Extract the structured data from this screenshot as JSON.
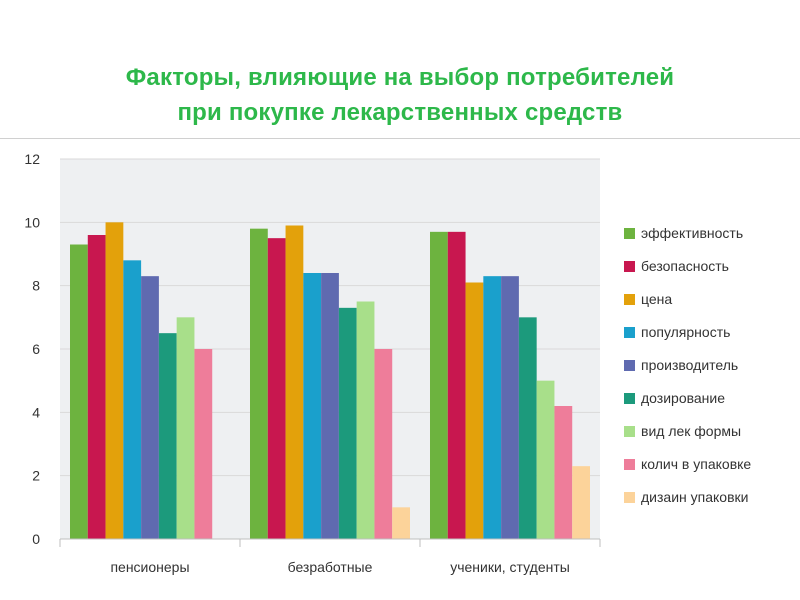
{
  "title": {
    "line1": "Факторы, влияющие на выбор потребителей",
    "line2": "при покупке лекарственных средств"
  },
  "colors": {
    "title": "#2db84a",
    "plot_background": "#eef0f2",
    "gridline": "#d9d9d9"
  },
  "chart_data": {
    "type": "bar",
    "categories": [
      "пенсионеры",
      "безработные",
      "ученики, студенты"
    ],
    "series": [
      {
        "name": "эффективность",
        "color": "#6db33f",
        "values": [
          9.3,
          9.8,
          9.7
        ]
      },
      {
        "name": "безопасность",
        "color": "#c8174f",
        "values": [
          9.6,
          9.5,
          9.7
        ]
      },
      {
        "name": "цена",
        "color": "#e3a10b",
        "values": [
          10.0,
          9.9,
          8.1
        ]
      },
      {
        "name": "популярность",
        "color": "#1aa0cc",
        "values": [
          8.8,
          8.4,
          8.3
        ]
      },
      {
        "name": "производитель",
        "color": "#5f6ab0",
        "values": [
          8.3,
          8.4,
          8.3
        ]
      },
      {
        "name": "дозирование",
        "color": "#1c9a7c",
        "values": [
          6.5,
          7.3,
          7.0
        ]
      },
      {
        "name": "вид лек формы",
        "color": "#a8df8a",
        "values": [
          7.0,
          7.5,
          5.0
        ]
      },
      {
        "name": "колич в упаковке",
        "color": "#ee7d9a",
        "values": [
          6.0,
          6.0,
          4.2
        ]
      },
      {
        "name": "дизаин упаковки",
        "color": "#fcd39a",
        "values": [
          0,
          1.0,
          2.3
        ]
      }
    ],
    "yticks": [
      "0",
      "2",
      "4",
      "6",
      "8",
      "10",
      "12"
    ],
    "ylim": [
      0,
      12
    ],
    "grid": true,
    "legend_position": "right"
  }
}
